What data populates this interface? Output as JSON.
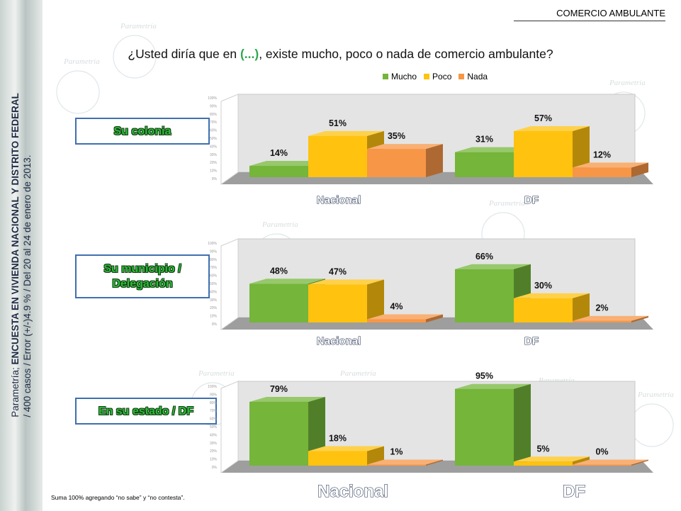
{
  "header": {
    "topic": "COMERCIO AMBULANTE",
    "question_pre": "¿Usted diría que en ",
    "question_accent": "(...)",
    "question_post": ", existe mucho, poco o nada de comercio ambulante?"
  },
  "sidebar": {
    "brand": "Parametría; ",
    "survey": "ENCUESTA EN VIVIENDA NACIONAL Y DISTRITO FEDERAL",
    "details": "/ 400 casos / Error (+/-)4.9 % / Del 20 al 24 de enero de 2013."
  },
  "footnote": "Suma 100%  agregando “no sabe” y “no contesta”.",
  "colors": {
    "mucho": "#74b53a",
    "poco": "#ffc20e",
    "nada": "#f79646",
    "label_border": "#3f6fb0",
    "label_text": "#2dbb3a"
  },
  "watermark": "Parametría",
  "chart_data": [
    {
      "type": "bar",
      "label": "Su colonia",
      "categories": [
        "Nacional",
        "DF"
      ],
      "series": [
        {
          "name": "Mucho",
          "values": [
            14,
            31
          ]
        },
        {
          "name": "Poco",
          "values": [
            51,
            57
          ]
        },
        {
          "name": "Nada",
          "values": [
            35,
            12
          ]
        }
      ],
      "value_suffix": "%",
      "ylim": [
        0,
        100
      ],
      "legend": "top"
    },
    {
      "type": "bar",
      "label": "Su municipio / Delegación",
      "categories": [
        "Nacional",
        "DF"
      ],
      "series": [
        {
          "name": "Mucho",
          "values": [
            48,
            66
          ]
        },
        {
          "name": "Poco",
          "values": [
            47,
            30
          ]
        },
        {
          "name": "Nada",
          "values": [
            4,
            2
          ]
        }
      ],
      "value_suffix": "%",
      "ylim": [
        0,
        100
      ]
    },
    {
      "type": "bar",
      "label": "En su estado / DF",
      "categories": [
        "Nacional",
        "DF"
      ],
      "series": [
        {
          "name": "Mucho",
          "values": [
            79,
            95
          ]
        },
        {
          "name": "Poco",
          "values": [
            18,
            5
          ]
        },
        {
          "name": "Nada",
          "values": [
            1,
            0
          ]
        }
      ],
      "value_suffix": "%",
      "ylim": [
        0,
        100
      ]
    }
  ]
}
